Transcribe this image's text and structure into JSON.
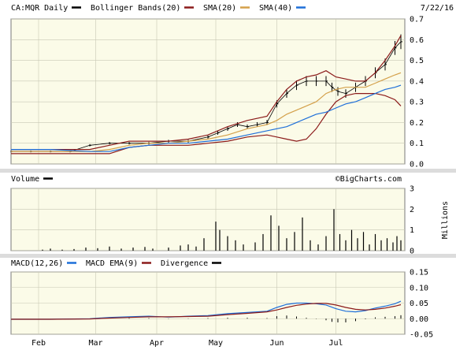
{
  "header": {
    "symbol_label": "CA:MQR Daily",
    "date": "7/22/16"
  },
  "legends": {
    "price": [
      {
        "label": "CA:MQR Daily",
        "color": "#000000"
      },
      {
        "label": "Bollinger Bands(20)",
        "color": "#8b1a1a"
      },
      {
        "label": "SMA(20)",
        "color": "#d4a04a"
      },
      {
        "label": "SMA(40)",
        "color": "#1e6fd9"
      }
    ],
    "volume": [
      {
        "label": "Volume",
        "color": "#000000"
      }
    ],
    "macd": [
      {
        "label": "MACD(12,26)",
        "color": "#1e6fd9"
      },
      {
        "label": "MACD EMA(9)",
        "color": "#8b1a1a"
      },
      {
        "label": "Divergence",
        "color": "#000000"
      }
    ]
  },
  "watermark": "©BigCharts.com",
  "colors": {
    "panel_bg": "#fbfbe8",
    "grid": "#c8c8b4",
    "frame": "#7a7a7a"
  },
  "chart_data": [
    {
      "type": "line",
      "panel": "price",
      "x_ticks": [
        "Feb",
        "Mar",
        "Apr",
        "May",
        "Jun",
        "Jul"
      ],
      "x_tick_days": [
        14,
        43,
        74,
        104,
        135,
        165
      ],
      "ylim": [
        0.0,
        0.7
      ],
      "y_ticks": [
        "0.0",
        "0.1",
        "0.2",
        "0.3",
        "0.4",
        "0.5",
        "0.6",
        "0.7"
      ],
      "grid": true,
      "series": [
        {
          "name": "CA:MQR Daily",
          "style": "ohlc",
          "color": "#000000",
          "x": [
            0,
            10,
            20,
            30,
            40,
            50,
            60,
            70,
            80,
            90,
            100,
            105,
            110,
            115,
            120,
            125,
            130,
            135,
            140,
            145,
            150,
            155,
            160,
            163,
            166,
            170,
            175,
            180,
            185,
            190,
            195,
            198
          ],
          "values": [
            0.06,
            0.06,
            0.06,
            0.06,
            0.09,
            0.1,
            0.1,
            0.1,
            0.11,
            0.11,
            0.13,
            0.15,
            0.17,
            0.19,
            0.18,
            0.19,
            0.2,
            0.29,
            0.34,
            0.38,
            0.4,
            0.4,
            0.4,
            0.37,
            0.35,
            0.34,
            0.37,
            0.4,
            0.44,
            0.48,
            0.56,
            0.59
          ]
        },
        {
          "name": "Bollinger Bands(20) upper",
          "color": "#8b1a1a",
          "x": [
            0,
            20,
            40,
            50,
            60,
            70,
            80,
            90,
            100,
            110,
            120,
            130,
            135,
            140,
            145,
            150,
            155,
            160,
            165,
            170,
            175,
            180,
            185,
            190,
            195,
            198
          ],
          "values": [
            0.07,
            0.07,
            0.07,
            0.09,
            0.11,
            0.11,
            0.11,
            0.12,
            0.14,
            0.18,
            0.21,
            0.23,
            0.3,
            0.36,
            0.4,
            0.42,
            0.43,
            0.45,
            0.42,
            0.41,
            0.4,
            0.4,
            0.44,
            0.5,
            0.57,
            0.62
          ]
        },
        {
          "name": "Bollinger Bands(20) lower",
          "color": "#8b1a1a",
          "x": [
            0,
            20,
            40,
            50,
            60,
            70,
            80,
            90,
            100,
            110,
            120,
            130,
            135,
            140,
            145,
            150,
            155,
            160,
            165,
            170,
            175,
            180,
            185,
            190,
            195,
            198
          ],
          "values": [
            0.05,
            0.05,
            0.05,
            0.05,
            0.08,
            0.09,
            0.09,
            0.09,
            0.1,
            0.11,
            0.13,
            0.14,
            0.13,
            0.12,
            0.11,
            0.12,
            0.17,
            0.24,
            0.3,
            0.33,
            0.34,
            0.34,
            0.34,
            0.33,
            0.31,
            0.28
          ]
        },
        {
          "name": "SMA(20)",
          "color": "#d4a04a",
          "x": [
            0,
            20,
            40,
            50,
            60,
            70,
            80,
            90,
            100,
            110,
            120,
            130,
            135,
            140,
            145,
            150,
            155,
            160,
            165,
            170,
            175,
            180,
            185,
            190,
            195,
            198
          ],
          "values": [
            0.06,
            0.06,
            0.06,
            0.07,
            0.09,
            0.1,
            0.1,
            0.11,
            0.12,
            0.14,
            0.17,
            0.19,
            0.21,
            0.24,
            0.26,
            0.28,
            0.3,
            0.34,
            0.36,
            0.37,
            0.37,
            0.37,
            0.39,
            0.41,
            0.43,
            0.44
          ]
        },
        {
          "name": "SMA(40)",
          "color": "#1e6fd9",
          "x": [
            0,
            20,
            40,
            50,
            60,
            70,
            80,
            90,
            100,
            110,
            120,
            130,
            135,
            140,
            145,
            150,
            155,
            160,
            165,
            170,
            175,
            180,
            185,
            190,
            195,
            198
          ],
          "values": [
            0.07,
            0.07,
            0.06,
            0.06,
            0.08,
            0.09,
            0.1,
            0.1,
            0.11,
            0.12,
            0.14,
            0.16,
            0.17,
            0.18,
            0.2,
            0.22,
            0.24,
            0.25,
            0.27,
            0.29,
            0.3,
            0.32,
            0.34,
            0.36,
            0.37,
            0.38
          ]
        }
      ]
    },
    {
      "type": "bar",
      "panel": "volume",
      "title": "Volume",
      "ylabel": "Millions",
      "ylim": [
        0,
        3
      ],
      "y_ticks": [
        "0",
        "1",
        "2",
        "3"
      ],
      "x": [
        16,
        20,
        26,
        32,
        38,
        44,
        50,
        56,
        62,
        68,
        72,
        80,
        86,
        90,
        94,
        98,
        104,
        106,
        110,
        114,
        118,
        124,
        128,
        132,
        136,
        140,
        144,
        148,
        152,
        156,
        160,
        164,
        167,
        170,
        173,
        176,
        179,
        182,
        185,
        188,
        191,
        194,
        196,
        198
      ],
      "values": [
        0.05,
        0.1,
        0.05,
        0.08,
        0.15,
        0.12,
        0.2,
        0.1,
        0.15,
        0.18,
        0.1,
        0.15,
        0.25,
        0.3,
        0.2,
        0.6,
        1.4,
        1.0,
        0.7,
        0.5,
        0.3,
        0.4,
        0.8,
        1.7,
        1.2,
        0.6,
        0.9,
        1.6,
        0.5,
        0.3,
        0.7,
        2.0,
        0.8,
        0.5,
        1.0,
        0.6,
        0.9,
        0.3,
        0.8,
        0.5,
        0.6,
        0.4,
        0.7,
        0.5
      ]
    },
    {
      "type": "line",
      "panel": "macd",
      "ylim": [
        -0.05,
        0.15
      ],
      "y_ticks": [
        "-0.05",
        "0.00",
        "0.05",
        "0.10",
        "0.15"
      ],
      "series": [
        {
          "name": "MACD(12,26)",
          "color": "#1e6fd9",
          "x": [
            0,
            20,
            40,
            50,
            60,
            70,
            80,
            90,
            100,
            110,
            120,
            130,
            135,
            140,
            145,
            150,
            155,
            160,
            165,
            170,
            175,
            180,
            185,
            190,
            195,
            198
          ],
          "values": [
            -0.002,
            -0.002,
            0.0,
            0.004,
            0.006,
            0.008,
            0.005,
            0.008,
            0.01,
            0.016,
            0.02,
            0.024,
            0.036,
            0.046,
            0.05,
            0.05,
            0.048,
            0.044,
            0.032,
            0.024,
            0.022,
            0.026,
            0.034,
            0.04,
            0.048,
            0.056
          ]
        },
        {
          "name": "MACD EMA(9)",
          "color": "#8b1a1a",
          "x": [
            0,
            20,
            40,
            50,
            60,
            70,
            80,
            90,
            100,
            110,
            120,
            130,
            135,
            140,
            145,
            150,
            155,
            160,
            165,
            170,
            175,
            180,
            185,
            190,
            195,
            198
          ],
          "values": [
            -0.002,
            -0.002,
            -0.001,
            0.002,
            0.004,
            0.006,
            0.006,
            0.007,
            0.008,
            0.013,
            0.017,
            0.022,
            0.028,
            0.036,
            0.043,
            0.047,
            0.049,
            0.049,
            0.044,
            0.036,
            0.03,
            0.028,
            0.03,
            0.034,
            0.04,
            0.045
          ]
        },
        {
          "name": "Divergence",
          "color": "#000000",
          "style": "bar",
          "x": [
            60,
            70,
            80,
            90,
            100,
            110,
            120,
            130,
            135,
            140,
            145,
            150,
            155,
            160,
            163,
            166,
            170,
            175,
            180,
            185,
            190,
            195,
            198
          ],
          "values": [
            0.002,
            0.002,
            -0.001,
            0.001,
            0.002,
            0.003,
            0.003,
            0.002,
            0.008,
            0.01,
            0.007,
            0.003,
            -0.001,
            -0.005,
            -0.01,
            -0.012,
            -0.012,
            -0.008,
            -0.002,
            0.004,
            0.006,
            0.008,
            0.011
          ]
        }
      ]
    }
  ]
}
